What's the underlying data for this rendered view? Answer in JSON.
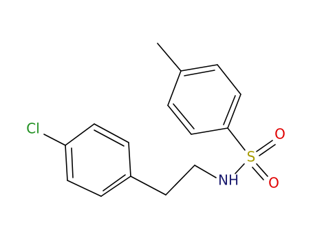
{
  "atoms": {
    "chlorine": "Cl",
    "amine": "NH",
    "sulfur": "S",
    "oxygen_top": "O",
    "oxygen_bottom": "O"
  }
}
